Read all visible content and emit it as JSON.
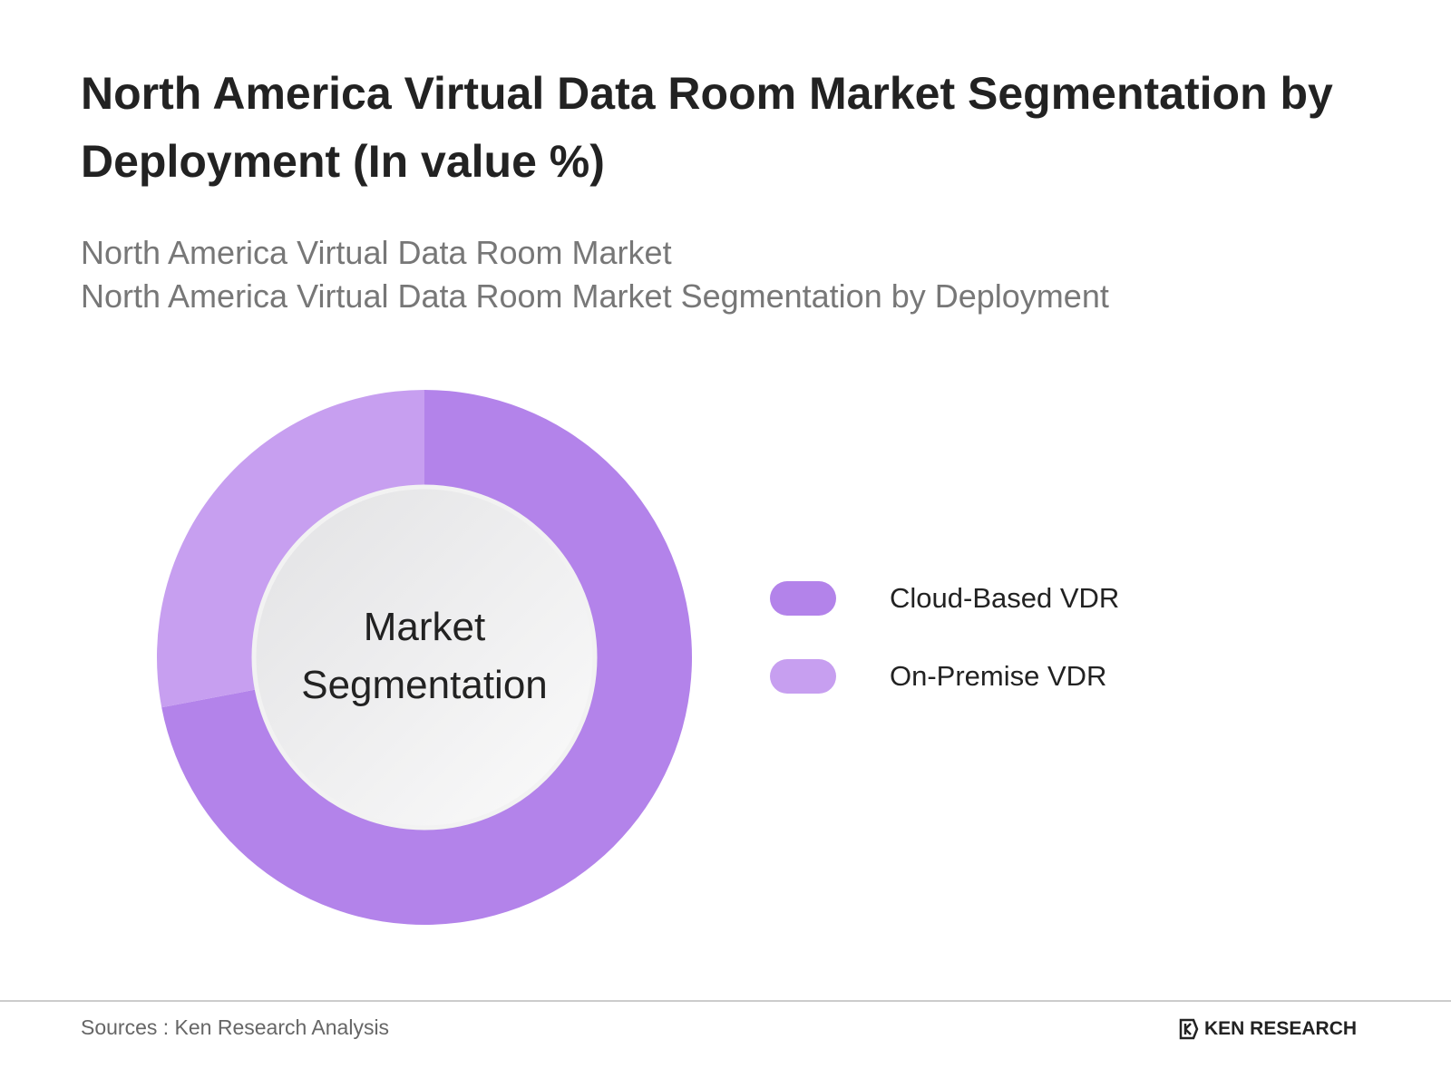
{
  "chart_data": {
    "type": "pie",
    "variant": "donut",
    "title": "North America Virtual Data Room Market Segmentation by Deployment (In value %)",
    "subtitles": [
      "North America Virtual Data Room Market",
      "North America Virtual Data Room Market Segmentation by Deployment"
    ],
    "center_label": [
      "Market",
      "Segmentation"
    ],
    "categories": [
      "Cloud-Based VDR",
      "On-Premise VDR"
    ],
    "values": [
      72,
      28
    ],
    "colors": [
      "#b383ea",
      "#c79ff0"
    ],
    "legend_position": "right"
  },
  "footer": {
    "sources": "Sources : Ken Research Analysis",
    "logo_text": "KEN RESEARCH"
  }
}
